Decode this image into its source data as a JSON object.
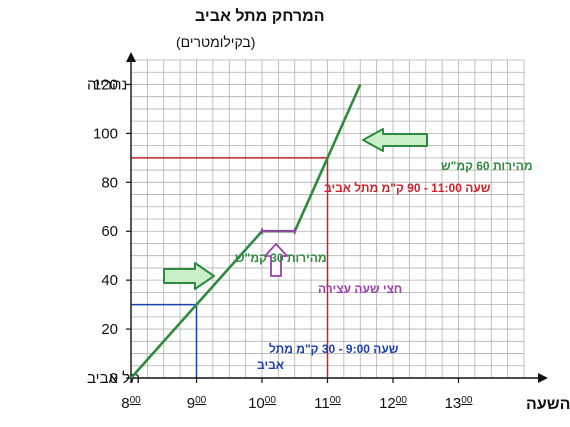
{
  "chart_data": {
    "type": "line",
    "title": "המרחק מתל אביב",
    "subtitle": "(בקילומטרים)",
    "xlabel": "השעה",
    "x_ticks": [
      8,
      9,
      10,
      11,
      12,
      13
    ],
    "x_tick_labels": [
      "8",
      "9",
      "10",
      "11",
      "12",
      "13"
    ],
    "x_tick_suffix": "00",
    "y_ticks": [
      0,
      20,
      40,
      60,
      80,
      100,
      120
    ],
    "xlim": [
      8,
      14
    ],
    "ylim": [
      0,
      130
    ],
    "grid": true,
    "y_place_labels": [
      {
        "y": 0,
        "label": "תל אביב"
      },
      {
        "y": 120,
        "label": "נהרייה"
      }
    ],
    "series": [
      {
        "x": [
          8,
          10,
          10.5,
          11.5
        ],
        "y": [
          0,
          60,
          60,
          120
        ],
        "color": "#2e8b3e"
      }
    ],
    "reference_lines": [
      {
        "x": 9,
        "y": 30,
        "color": "#1e3fae"
      },
      {
        "x": 11,
        "y": 90,
        "color": "#d11f2a"
      }
    ],
    "annotations": {
      "red_time": "שעה 11:00 - 90 ק\"מ מתל אביב",
      "speed_60": "מהירות 60 קמ\"ש",
      "speed_30": "מהירות 30 קמ\"ש",
      "break": "חצי שעה עצירה",
      "blue_time_line1": "שעה 9:00 - 30 ק\"מ מתל",
      "blue_time_line2": "אביב"
    },
    "colors": {
      "green": "#2e8b3e",
      "red": "#d11f2a",
      "blue": "#1e3fae",
      "purple": "#9b3fae",
      "arrow_fill": "#c9efc9"
    }
  }
}
